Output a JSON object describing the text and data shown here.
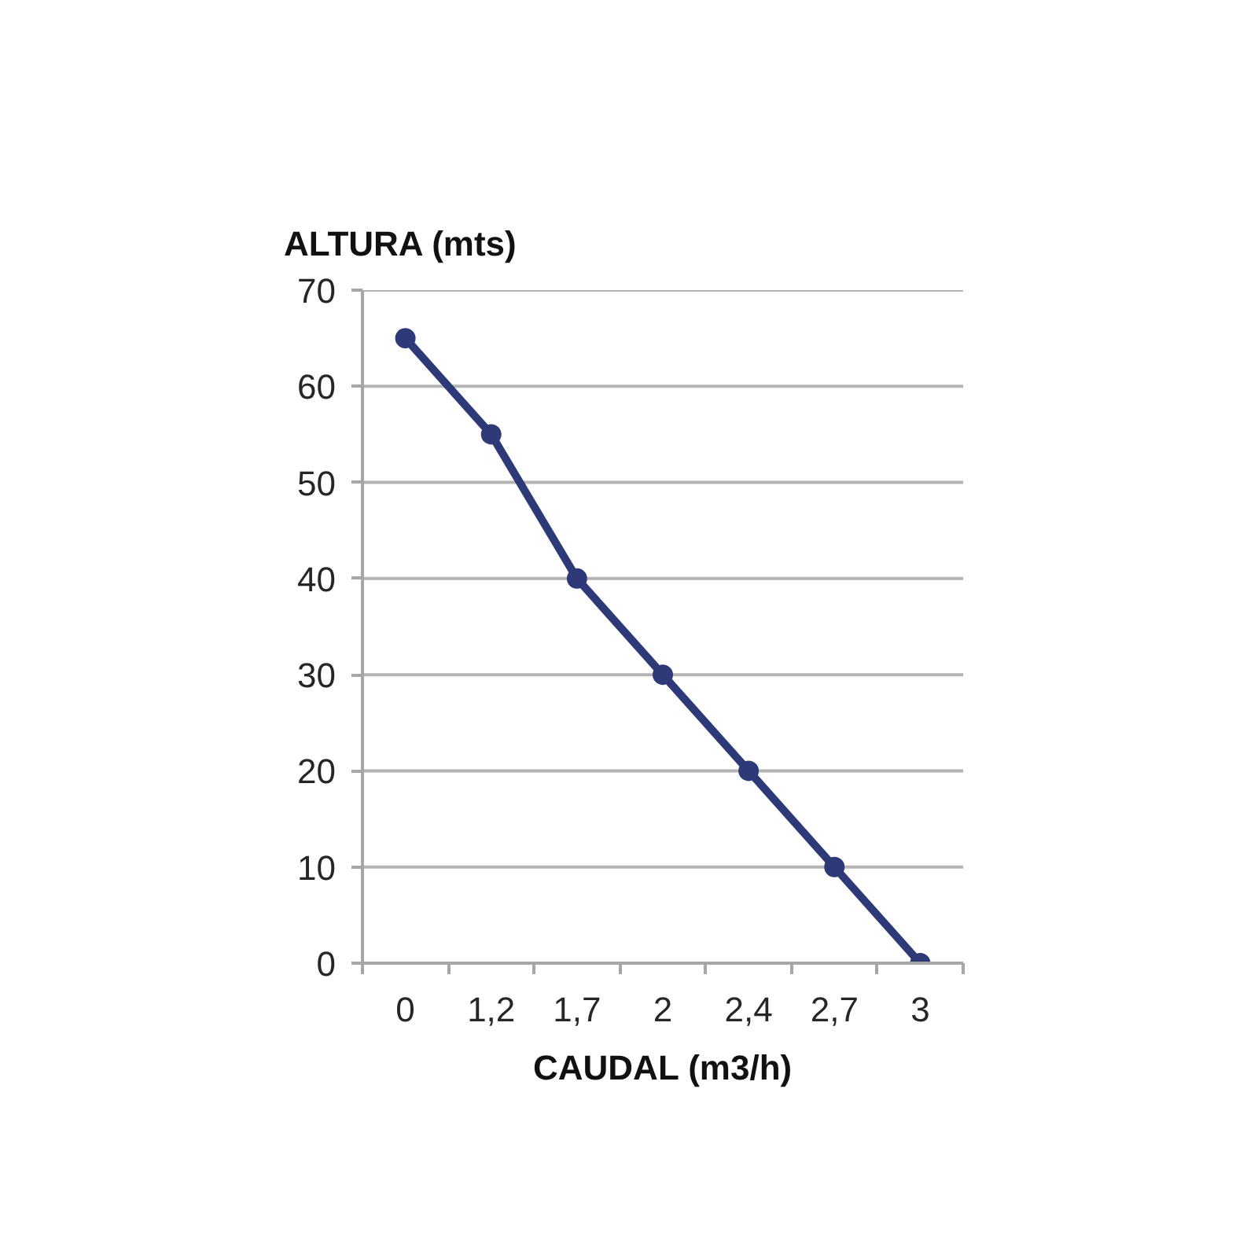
{
  "chart_data": {
    "type": "line",
    "xlabel": "CAUDAL (m3/h)",
    "ylabel": "ALTURA (mts)",
    "categories": [
      "0",
      "1,2",
      "1,7",
      "2",
      "2,4",
      "2,7",
      "3"
    ],
    "series": [
      {
        "color": "#2e3a78",
        "values": [
          65,
          55,
          40,
          30,
          20,
          10,
          0
        ]
      }
    ],
    "ylim": [
      0,
      70
    ],
    "yticks": [
      0,
      10,
      20,
      30,
      40,
      50,
      60,
      70
    ],
    "grid": "y",
    "marker": "circle",
    "line_style": "solid"
  }
}
